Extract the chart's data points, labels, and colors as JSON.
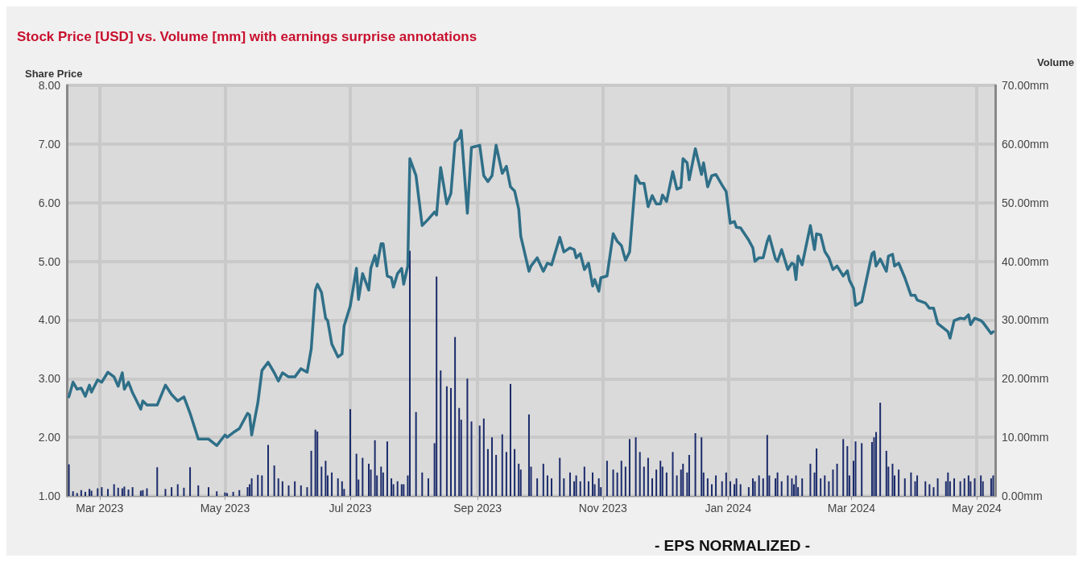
{
  "chart_data": {
    "type": "line",
    "title": "Stock Price [USD] vs. Volume [mm] with earnings surprise annotations",
    "ylabel": "Share Price",
    "y2label": "Volume",
    "annotations": [
      "- EPS NORMALIZED -"
    ],
    "x": [
      "2023-02-14",
      "2023-02-16",
      "2023-02-18",
      "2023-02-20",
      "2023-02-22",
      "2023-02-24",
      "2023-02-25",
      "2023-02-28",
      "2023-03-02",
      "2023-03-05",
      "2023-03-08",
      "2023-03-10",
      "2023-03-12",
      "2023-03-13",
      "2023-03-15",
      "2023-03-17",
      "2023-03-21",
      "2023-03-22",
      "2023-03-24",
      "2023-03-29",
      "2023-04-02",
      "2023-04-05",
      "2023-04-08",
      "2023-04-11",
      "2023-04-14",
      "2023-04-18",
      "2023-04-23",
      "2023-04-27",
      "2023-05-01",
      "2023-05-02",
      "2023-05-05",
      "2023-05-08",
      "2023-05-12",
      "2023-05-13",
      "2023-05-14",
      "2023-05-17",
      "2023-05-19",
      "2023-05-22",
      "2023-05-25",
      "2023-05-27",
      "2023-05-29",
      "2023-06-01",
      "2023-06-04",
      "2023-06-07",
      "2023-06-10",
      "2023-06-12",
      "2023-06-14",
      "2023-06-15",
      "2023-06-17",
      "2023-06-19",
      "2023-06-20",
      "2023-06-22",
      "2023-06-25",
      "2023-06-27",
      "2023-06-28",
      "2023-07-01",
      "2023-07-04",
      "2023-07-05",
      "2023-07-07",
      "2023-07-10",
      "2023-07-11",
      "2023-07-13",
      "2023-07-14",
      "2023-07-16",
      "2023-07-17",
      "2023-07-19",
      "2023-07-21",
      "2023-07-22",
      "2023-07-24",
      "2023-07-26",
      "2023-07-27",
      "2023-07-29",
      "2023-07-30",
      "2023-08-02",
      "2023-08-05",
      "2023-08-08",
      "2023-08-11",
      "2023-08-12",
      "2023-08-14",
      "2023-08-17",
      "2023-08-19",
      "2023-08-21",
      "2023-08-23",
      "2023-08-24",
      "2023-08-27",
      "2023-08-29",
      "2023-09-02",
      "2023-09-04",
      "2023-09-06",
      "2023-09-08",
      "2023-09-10",
      "2023-09-13",
      "2023-09-15",
      "2023-09-17",
      "2023-09-19",
      "2023-09-21",
      "2023-09-22",
      "2023-09-26",
      "2023-09-27",
      "2023-09-30",
      "2023-10-03",
      "2023-10-05",
      "2023-10-07",
      "2023-10-11",
      "2023-10-13",
      "2023-10-16",
      "2023-10-18",
      "2023-10-19",
      "2023-10-21",
      "2023-10-23",
      "2023-10-25",
      "2023-10-27",
      "2023-10-28",
      "2023-10-30",
      "2023-10-31",
      "2023-11-03",
      "2023-11-06",
      "2023-11-08",
      "2023-11-10",
      "2023-11-12",
      "2023-11-14",
      "2023-11-17",
      "2023-11-19",
      "2023-11-21",
      "2023-11-23",
      "2023-11-25",
      "2023-11-27",
      "2023-11-29",
      "2023-11-30",
      "2023-12-02",
      "2023-12-05",
      "2023-12-07",
      "2023-12-09",
      "2023-12-10",
      "2023-12-12",
      "2023-12-13",
      "2023-12-16",
      "2023-12-19",
      "2023-12-20",
      "2023-12-22",
      "2023-12-24",
      "2023-12-26",
      "2023-12-29",
      "2023-12-31",
      "2024-01-02",
      "2024-01-04",
      "2024-01-05",
      "2024-01-07",
      "2024-01-11",
      "2024-01-13",
      "2024-01-14",
      "2024-01-16",
      "2024-01-18",
      "2024-01-20",
      "2024-01-21",
      "2024-01-24",
      "2024-01-25",
      "2024-01-27",
      "2024-01-30",
      "2024-02-01",
      "2024-02-02",
      "2024-02-03",
      "2024-02-04",
      "2024-02-06",
      "2024-02-10",
      "2024-02-12",
      "2024-02-13",
      "2024-02-15",
      "2024-02-17",
      "2024-02-19",
      "2024-02-21",
      "2024-02-23",
      "2024-02-26",
      "2024-02-28",
      "2024-02-29",
      "2024-03-02",
      "2024-03-03",
      "2024-03-06",
      "2024-03-11",
      "2024-03-12",
      "2024-03-13",
      "2024-03-15",
      "2024-03-18",
      "2024-03-19",
      "2024-03-21",
      "2024-03-22",
      "2024-03-24",
      "2024-03-27",
      "2024-03-30",
      "2024-04-01",
      "2024-04-02",
      "2024-04-06",
      "2024-04-08",
      "2024-04-10",
      "2024-04-12",
      "2024-04-16",
      "2024-04-17",
      "2024-04-18",
      "2024-04-20",
      "2024-04-23",
      "2024-04-25",
      "2024-04-27",
      "2024-04-28",
      "2024-04-30",
      "2024-05-03",
      "2024-05-04",
      "2024-05-08",
      "2024-05-09"
    ],
    "series": [
      {
        "color": "#2f6f88",
        "values": [
          2.69,
          2.94,
          2.82,
          2.84,
          2.7,
          2.89,
          2.77,
          2.98,
          2.94,
          3.11,
          3.03,
          2.87,
          3.1,
          2.82,
          2.94,
          2.76,
          2.48,
          2.62,
          2.55,
          2.55,
          2.89,
          2.73,
          2.62,
          2.69,
          2.41,
          1.97,
          1.97,
          1.86,
          2.04,
          2.0,
          2.08,
          2.15,
          2.41,
          2.38,
          2.04,
          2.59,
          3.14,
          3.28,
          3.1,
          2.96,
          3.1,
          3.03,
          3.03,
          3.17,
          3.11,
          3.51,
          4.51,
          4.61,
          4.47,
          4.03,
          3.99,
          3.59,
          3.37,
          3.42,
          3.9,
          4.24,
          4.88,
          4.35,
          4.79,
          4.51,
          4.88,
          5.1,
          4.92,
          5.3,
          5.3,
          4.75,
          4.72,
          4.56,
          4.79,
          4.88,
          4.61,
          4.92,
          6.75,
          6.46,
          5.61,
          5.72,
          5.84,
          5.79,
          6.6,
          5.98,
          6.16,
          7.03,
          7.1,
          7.23,
          5.82,
          6.94,
          6.98,
          6.46,
          6.36,
          6.46,
          6.98,
          6.5,
          6.62,
          6.27,
          6.2,
          5.89,
          5.43,
          4.83,
          4.92,
          5.06,
          4.83,
          4.97,
          4.94,
          5.41,
          5.16,
          5.23,
          5.2,
          5.06,
          5.13,
          4.86,
          4.97,
          4.58,
          4.69,
          4.49,
          4.72,
          4.75,
          5.47,
          5.34,
          5.27,
          5.02,
          5.16,
          6.46,
          6.33,
          6.33,
          5.93,
          6.12,
          5.98,
          5.98,
          6.13,
          6.02,
          6.53,
          6.23,
          6.26,
          6.75,
          6.68,
          6.39,
          6.92,
          6.48,
          6.68,
          6.27,
          6.46,
          6.48,
          6.3,
          6.19,
          5.65,
          5.68,
          5.58,
          5.57,
          5.36,
          5.23,
          5.0,
          5.06,
          5.06,
          5.34,
          5.43,
          5.04,
          5.0,
          5.2,
          4.86,
          4.97,
          4.95,
          4.69,
          5.09,
          4.94,
          5.61,
          5.2,
          5.47,
          5.45,
          5.17,
          5.06,
          4.86,
          4.92,
          4.75,
          4.84,
          4.68,
          4.54,
          4.25,
          4.31,
          5.13,
          5.16,
          4.92,
          5.04,
          4.83,
          5.09,
          5.12,
          4.92,
          4.97,
          4.72,
          4.42,
          4.42,
          4.34,
          4.29,
          4.2,
          4.2,
          3.94,
          3.83,
          3.8,
          3.69,
          3.99,
          4.03,
          4.02,
          4.09,
          3.92,
          4.03,
          3.99,
          3.96,
          3.77,
          3.8
        ]
      },
      {
        "type": "bar",
        "axis": "y2",
        "color": "#1b2b6b",
        "values": [
          5.4,
          0.8,
          0.5,
          1.0,
          0.7,
          1.2,
          0.9,
          1.3,
          1.5,
          1.2,
          2.0,
          1.4,
          1.3,
          1.6,
          1.1,
          1.5,
          0.9,
          1.0,
          1.3,
          4.9,
          1.2,
          1.5,
          2.0,
          1.4,
          4.9,
          1.8,
          1.5,
          0.8,
          0.6,
          0.5,
          0.7,
          1.0,
          1.5,
          2.0,
          3.0,
          3.6,
          3.5,
          8.7,
          5.2,
          3.0,
          2.5,
          1.8,
          2.5,
          1.8,
          1.5,
          7.7,
          11.3,
          11.0,
          5.0,
          6.0,
          3.5,
          4.0,
          3.0,
          2.5,
          1.2,
          14.8,
          7.2,
          2.8,
          6.5,
          5.5,
          4.5,
          9.5,
          3.5,
          5.0,
          4.0,
          9.3,
          3.0,
          2.0,
          2.5,
          2.0,
          2.0,
          3.5,
          41.8,
          14.3,
          4.0,
          3.0,
          9.0,
          37.4,
          21.4,
          18.7,
          18.4,
          27.1,
          15.0,
          13.0,
          20.0,
          12.7,
          12.0,
          13.2,
          8.0,
          10.0,
          7.0,
          10.5,
          7.5,
          19.1,
          8.0,
          5.5,
          4.5,
          13.9,
          5.0,
          3.0,
          5.5,
          3.5,
          3.0,
          6.5,
          3.0,
          4.0,
          2.5,
          3.5,
          2.5,
          5.0,
          2.5,
          4.0,
          2.0,
          3.0,
          1.5,
          6.0,
          4.5,
          4.0,
          6.0,
          5.0,
          9.7,
          10.0,
          7.5,
          5.0,
          6.5,
          3.0,
          4.5,
          6.0,
          5.0,
          4.0,
          7.5,
          3.5,
          4.5,
          5.5,
          4.0,
          7.0,
          10.7,
          10.0,
          4.0,
          3.0,
          2.0,
          3.5,
          2.5,
          4.0,
          2.5,
          2.0,
          3.0,
          2.0,
          1.5,
          3.0,
          2.5,
          3.5,
          3.0,
          10.4,
          3.5,
          3.0,
          4.0,
          2.5,
          3.5,
          3.0,
          2.0,
          3.5,
          1.5,
          3.0,
          5.5,
          4.0,
          8.1,
          3.0,
          3.5,
          2.5,
          4.5,
          5.5,
          9.7,
          8.5,
          3.5,
          6.0,
          9.3,
          9.0,
          9.2,
          10.0,
          10.9,
          15.9,
          7.7,
          5.0,
          5.5,
          3.5,
          4.5,
          3.0,
          4.0,
          2.5,
          3.5,
          2.5,
          2.0,
          1.5,
          3.0,
          2.5,
          4.0,
          2.5,
          3.0,
          2.5,
          3.0,
          3.5,
          2.5,
          3.0,
          3.5,
          2.5,
          3.0,
          3.5
        ]
      }
    ],
    "xlim": [
      "2023-02-13",
      "2024-05-10"
    ],
    "xticks": [
      {
        "value": "2023-03-01",
        "label": "Mar 2023"
      },
      {
        "value": "2023-05-01",
        "label": "May 2023"
      },
      {
        "value": "2023-07-01",
        "label": "Jul 2023"
      },
      {
        "value": "2023-09-01",
        "label": "Sep 2023"
      },
      {
        "value": "2023-11-01",
        "label": "Nov 2023"
      },
      {
        "value": "2024-01-01",
        "label": "Jan 2024"
      },
      {
        "value": "2024-03-01",
        "label": "Mar 2024"
      },
      {
        "value": "2024-05-01",
        "label": "May 2024"
      }
    ],
    "ylim": [
      1,
      8
    ],
    "yticks": [
      {
        "value": 1,
        "label": "1.00"
      },
      {
        "value": 2,
        "label": "2.00"
      },
      {
        "value": 3,
        "label": "3.00"
      },
      {
        "value": 4,
        "label": "4.00"
      },
      {
        "value": 5,
        "label": "5.00"
      },
      {
        "value": 6,
        "label": "6.00"
      },
      {
        "value": 7,
        "label": "7.00"
      },
      {
        "value": 8,
        "label": "8.00"
      }
    ],
    "y2lim": [
      0,
      70
    ],
    "y2ticks": [
      {
        "value": 0,
        "label": "0.00mm"
      },
      {
        "value": 10,
        "label": "10.00mm"
      },
      {
        "value": 20,
        "label": "20.00mm"
      },
      {
        "value": 30,
        "label": "30.00mm"
      },
      {
        "value": 40,
        "label": "40.00mm"
      },
      {
        "value": 50,
        "label": "50.00mm"
      },
      {
        "value": 60,
        "label": "60.00mm"
      },
      {
        "value": 70,
        "label": "70.00mm"
      }
    ],
    "grid": true,
    "marker": "none",
    "line_style": "solid"
  }
}
